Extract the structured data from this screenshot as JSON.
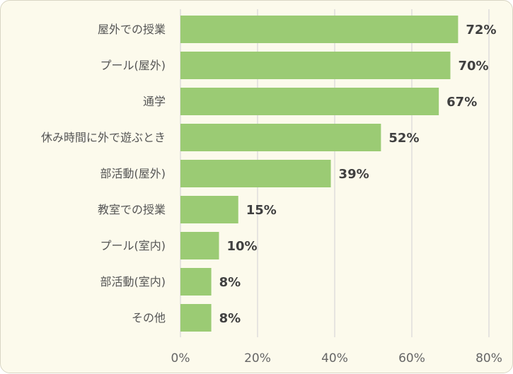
{
  "chart_data": {
    "type": "bar",
    "orientation": "horizontal",
    "categories": [
      "屋外での授業",
      "プール(屋外)",
      "通学",
      "休み時間に外で遊ぶとき",
      "部活動(屋外)",
      "教室での授業",
      "プール(室内)",
      "部活動(室内)",
      "その他"
    ],
    "values": [
      72,
      70,
      67,
      52,
      39,
      15,
      10,
      8,
      8
    ],
    "data_labels": [
      "72%",
      "70%",
      "67%",
      "52%",
      "39%",
      "15%",
      "10%",
      "8%",
      "8%"
    ],
    "xlim": [
      0,
      80
    ],
    "xticks": [
      0,
      20,
      40,
      60,
      80
    ],
    "xtick_labels": [
      "0%",
      "20%",
      "40%",
      "60%",
      "80%"
    ],
    "grid": "vertical",
    "legend": "none",
    "bar_color": "#9bcb74",
    "background_color": "#fcfaec"
  }
}
